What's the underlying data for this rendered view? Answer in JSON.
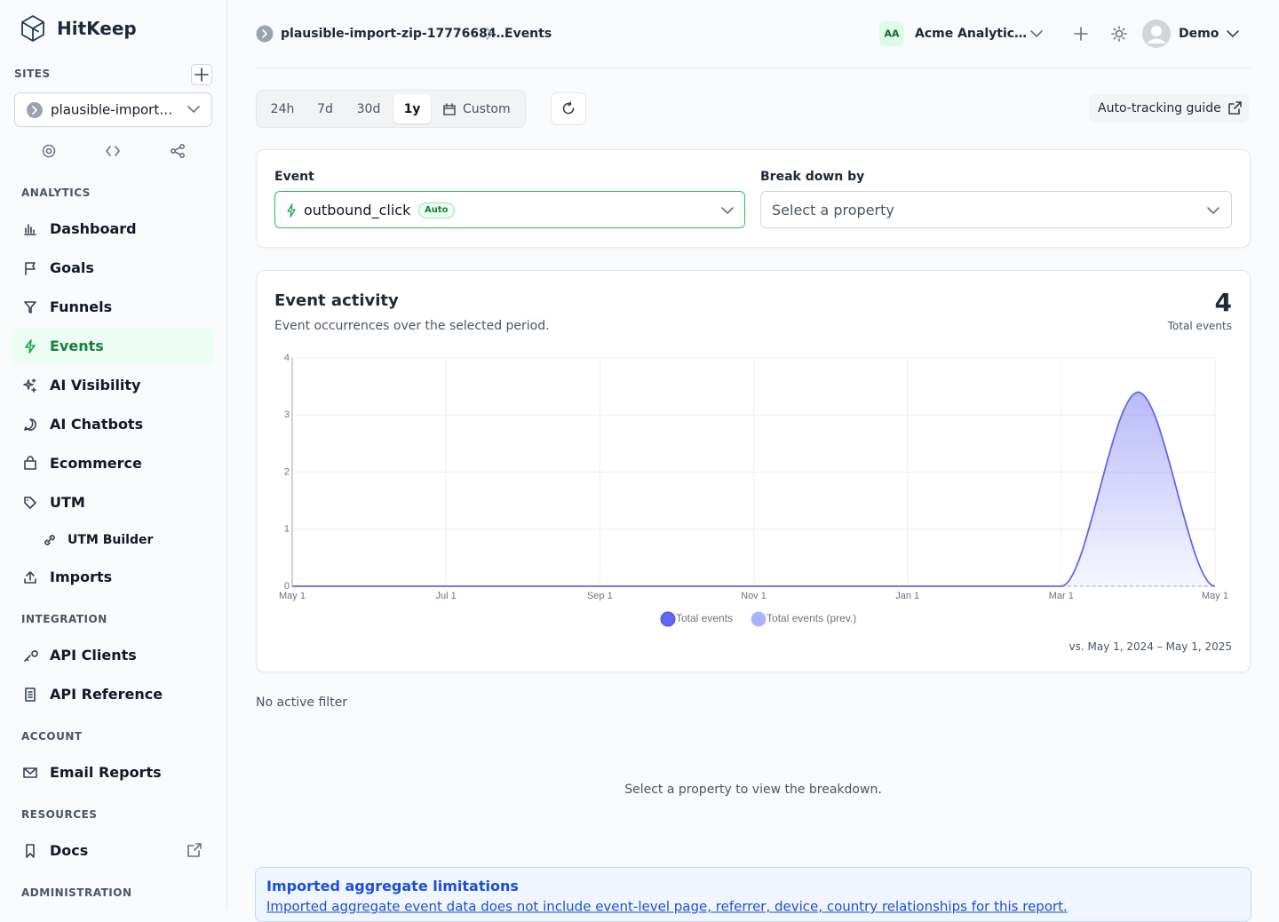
{
  "sidebar": {
    "brand": "HitKeep",
    "sites_label": "SITES",
    "site": "plausible-import…",
    "nav": [
      {
        "heading": "ANALYTICS",
        "items": [
          {
            "label": "Dashboard"
          },
          {
            "label": "Goals"
          },
          {
            "label": "Funnels"
          },
          {
            "label": "Events",
            "active": true
          },
          {
            "label": "AI Visibility"
          },
          {
            "label": "AI Chatbots"
          },
          {
            "label": "Ecommerce"
          },
          {
            "label": "UTM"
          },
          {
            "label": "UTM Builder",
            "sub": true
          },
          {
            "label": "Imports"
          }
        ]
      },
      {
        "heading": "INTEGRATION",
        "items": [
          {
            "label": "API Clients"
          },
          {
            "label": "API Reference"
          }
        ]
      },
      {
        "heading": "ACCOUNT",
        "items": [
          {
            "label": "Email Reports"
          }
        ]
      },
      {
        "heading": "RESOURCES",
        "items": [
          {
            "label": "Docs",
            "external": true
          }
        ]
      },
      {
        "heading": "ADMINISTRATION",
        "items": []
      }
    ]
  },
  "header": {
    "breadcrumb": [
      "plausible-import-zip-17776684…",
      "Events"
    ],
    "org_initials": "AA",
    "org": "Acme Analytic…",
    "user": "Demo"
  },
  "toolbar": {
    "ranges": [
      "24h",
      "7d",
      "30d",
      "1y",
      "Custom"
    ],
    "active_range": 3,
    "guide": "Auto-tracking guide"
  },
  "filters": {
    "event_label": "Event",
    "event": "outbound_click",
    "event_badge": "Auto",
    "breakdown_label": "Break down by",
    "breakdown_placeholder": "Select a property"
  },
  "chart_data": {
    "type": "area",
    "title": "Event activity",
    "subtitle": "Event occurrences over the selected period.",
    "total": 4,
    "total_label": "Total events",
    "categories": [
      "May 1",
      null,
      "Jul 1",
      null,
      "Sep 1",
      null,
      "Nov 1",
      null,
      "Jan 1",
      null,
      "Mar 1",
      null,
      "May 1"
    ],
    "series": [
      {
        "name": "Total events",
        "color": "#6366f1",
        "values": [
          0,
          0,
          0,
          0,
          0,
          0,
          0,
          0,
          0,
          0,
          0,
          3.4,
          0
        ]
      },
      {
        "name": "Total events (prev.)",
        "color": "#a5b4fc",
        "values": [
          null,
          null,
          null,
          null,
          null,
          null,
          null,
          null,
          null,
          null,
          0,
          0,
          0
        ]
      }
    ],
    "ylim": [
      0,
      4
    ],
    "yticks": [
      0,
      1,
      2,
      3,
      4
    ],
    "grid": true,
    "comparison": "vs. May 1, 2024 – May 1, 2025"
  },
  "filter_status": "No active filter",
  "empty_message": "Select a property to view the breakdown.",
  "notice": {
    "title": "Imported aggregate limitations",
    "text": "Imported aggregate event data does not include event-level page, referrer, device, country relationships for this report."
  }
}
